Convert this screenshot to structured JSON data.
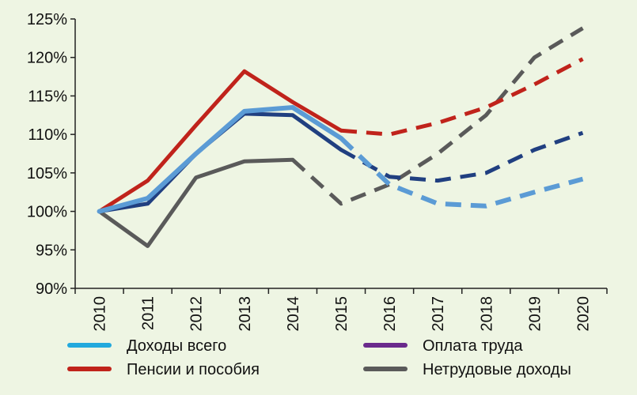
{
  "chart_data": {
    "type": "line",
    "title": "",
    "xlabel": "",
    "ylabel": "",
    "x": [
      "2010",
      "2011",
      "2012",
      "2013",
      "2014",
      "2015",
      "2016",
      "2017",
      "2018",
      "2019",
      "2020"
    ],
    "ylim": [
      90,
      125
    ],
    "y_ticks": [
      "90%",
      "95%",
      "100%",
      "105%",
      "110%",
      "115%",
      "120%",
      "125%"
    ],
    "grid": false,
    "legend_position": "bottom",
    "series": [
      {
        "name": "Доходы всего",
        "color": "#5b9bd5",
        "legend_color": "#22a9dd",
        "values": [
          100,
          101.7,
          107.5,
          113,
          113.5,
          109.5,
          103.5,
          101,
          100.7,
          102.5,
          104.2
        ],
        "forecast_from_index": 5
      },
      {
        "name": "Оплата труда",
        "color": "#203f80",
        "legend_color": "#6a2a8c",
        "values": [
          100,
          101,
          107.5,
          112.7,
          112.5,
          108,
          104.5,
          104,
          105,
          108,
          110.2
        ],
        "forecast_from_index": 5
      },
      {
        "name": "Пенсии и пособия",
        "color": "#c0231b",
        "legend_color": "#c0231b",
        "values": [
          100,
          104,
          111.2,
          118.2,
          114.2,
          110.5,
          110,
          111.5,
          113.5,
          116.5,
          119.8
        ],
        "forecast_from_index": 5
      },
      {
        "name": "Нетрудовые доходы",
        "color": "#5a5a5a",
        "legend_color": "#5a5a5a",
        "values": [
          100,
          95.5,
          104.4,
          106.5,
          106.7,
          101,
          103.5,
          107.5,
          112.5,
          120,
          123.8
        ],
        "forecast_from_index": 4
      }
    ],
    "legend": [
      {
        "series_index": 0,
        "label": "Доходы всего"
      },
      {
        "series_index": 1,
        "label": "Оплата труда"
      },
      {
        "series_index": 2,
        "label": "Пенсии и пособия"
      },
      {
        "series_index": 3,
        "label": "Нетрудовые доходы"
      }
    ]
  }
}
